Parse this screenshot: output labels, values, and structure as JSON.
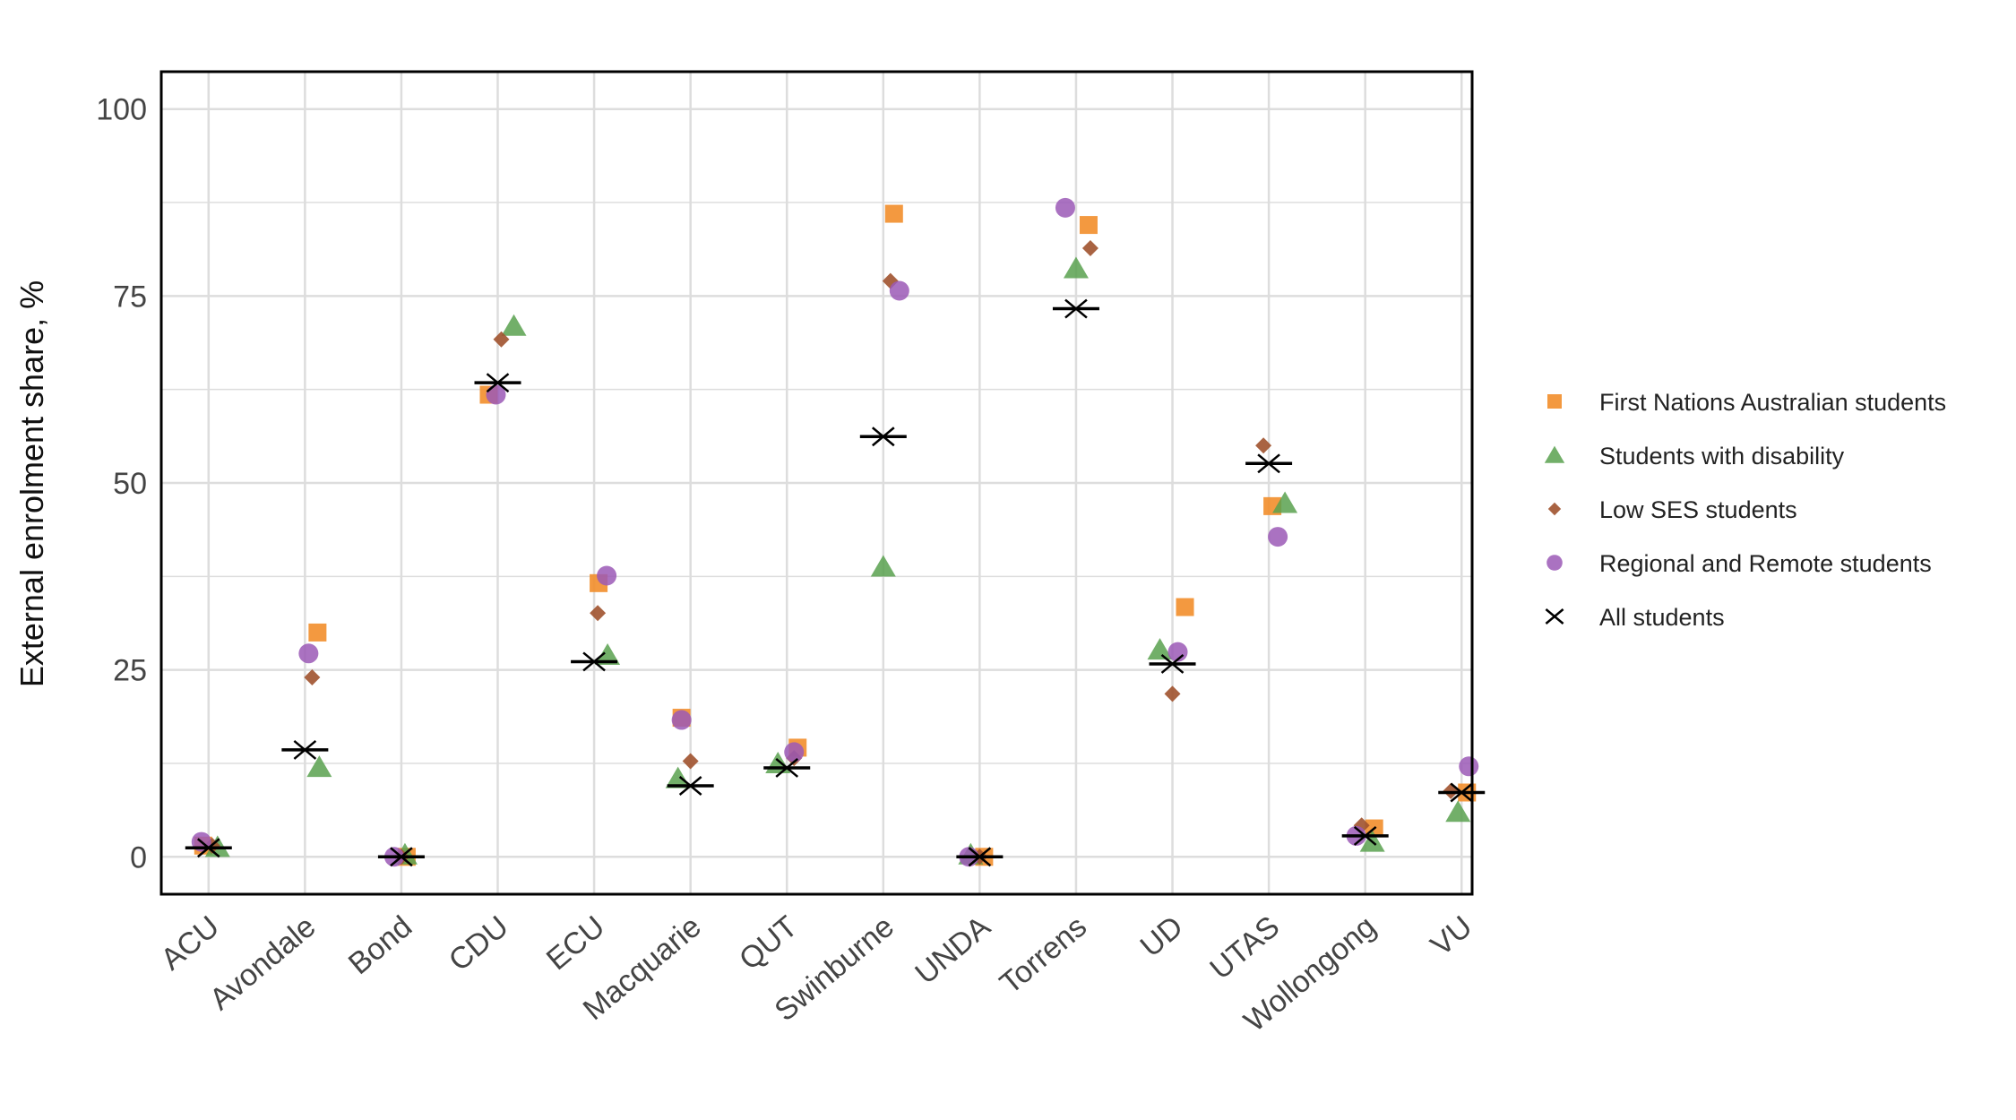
{
  "chart_data": {
    "type": "scatter",
    "title": "",
    "xlabel": "",
    "ylabel": "External enrolment share, %",
    "ylim": [
      -5,
      105
    ],
    "yticks": [
      0,
      25,
      50,
      75,
      100
    ],
    "grid": true,
    "legend_position": "right",
    "categories": [
      "ACU",
      "Avondale",
      "Bond",
      "CDU",
      "ECU",
      "Macquarie",
      "QUT",
      "Swinburne",
      "UNDA",
      "Torrens",
      "UD",
      "UTAS",
      "Wollongong",
      "VU"
    ],
    "series": [
      {
        "name": "First Nations Australian students",
        "marker": "square",
        "color": "#f28e2b",
        "values": [
          1.5,
          30,
          0,
          61.8,
          36.6,
          18.6,
          14.6,
          86,
          0,
          84.5,
          33.4,
          46.9,
          3.8,
          8.6
        ]
      },
      {
        "name": "Students with disability",
        "marker": "triangle",
        "color": "#59a14f",
        "values": [
          1.3,
          12,
          0.3,
          71,
          27,
          10.5,
          12.5,
          38.8,
          0.3,
          78.7,
          27.7,
          47.3,
          2,
          6
        ]
      },
      {
        "name": "Low SES students",
        "marker": "diamond",
        "color": "#a0522d",
        "values": [
          1.5,
          24,
          0,
          69.2,
          32.6,
          12.8,
          13.2,
          77,
          0,
          81.4,
          21.8,
          55,
          4.2,
          8.8
        ]
      },
      {
        "name": "Regional and Remote students",
        "marker": "circle",
        "color": "#9b59b6",
        "values": [
          2,
          27.2,
          0,
          61.8,
          37.6,
          18.3,
          14,
          75.7,
          0,
          86.8,
          27.4,
          42.8,
          2.8,
          12.1
        ]
      },
      {
        "name": "All students",
        "marker": "x",
        "color": "#000000",
        "values": [
          1.2,
          14.3,
          0,
          63.4,
          26.1,
          9.5,
          11.9,
          56.2,
          0,
          73.3,
          25.8,
          52.6,
          2.8,
          8.6
        ]
      }
    ]
  }
}
